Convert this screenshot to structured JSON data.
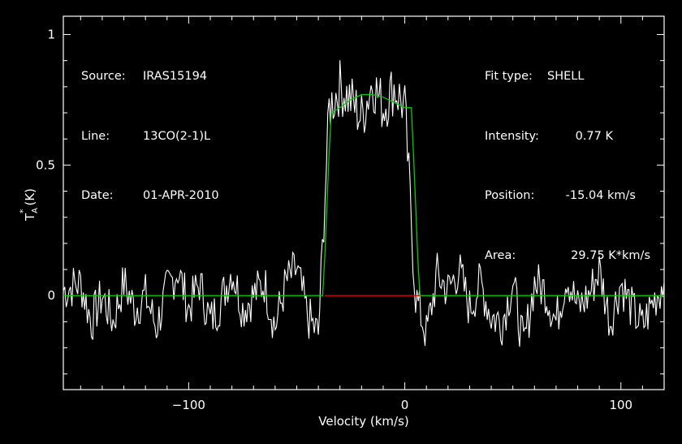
{
  "header": {
    "source_key": "Source:",
    "source_val": "IRAS15194",
    "line_key": "Line:",
    "line_val": "13CO(2-1)L",
    "date_key": "Date:",
    "date_val": "01-APR-2010"
  },
  "fit": {
    "type_key": "Fit type:",
    "type_val": "SHELL",
    "intensity_key": "Intensity:",
    "intensity_val": "0.77 K",
    "position_key": "Position:",
    "position_val": "-15.04 km/s",
    "area_key": "Area:",
    "area_val": "29.75 K*km/s"
  },
  "colors": {
    "background": "#000000",
    "spectrum": "#ffffff",
    "fit": "#00cc00",
    "baseline_window": "#dd0000"
  },
  "chart_data": {
    "type": "line",
    "xlabel": "Velocity (km/s)",
    "ylabel": "T*A (K)",
    "xlim": [
      -158,
      120
    ],
    "ylim": [
      -0.36,
      1.07
    ],
    "xticks": [
      -100,
      0,
      100
    ],
    "xtick_labels": [
      "-100",
      "0",
      "100"
    ],
    "yticks": [
      0,
      0.5,
      1
    ],
    "ytick_labels": [
      "0",
      "0.5",
      "1"
    ],
    "grid": false,
    "series": [
      {
        "kind": "spectrum",
        "x": [
          -158,
          -150,
          -145,
          -140,
          -135,
          -130,
          -125,
          -120,
          -115,
          -110,
          -105,
          -100,
          -95,
          -90,
          -85,
          -80,
          -75,
          -70,
          -65,
          -60,
          -55,
          -50,
          -45,
          -40,
          -35,
          -30,
          -25,
          -20,
          -15,
          -10,
          -5,
          0,
          5,
          10,
          15,
          20,
          25,
          30,
          35,
          40,
          45,
          50,
          55,
          60,
          65,
          70,
          75,
          80,
          85,
          90,
          95,
          100,
          105,
          110,
          115,
          120
        ],
        "y": [
          0.02,
          0.05,
          -0.1,
          0.0,
          -0.1,
          0.05,
          -0.05,
          0.0,
          -0.12,
          0.02,
          0.1,
          -0.05,
          0.05,
          -0.1,
          -0.02,
          0.1,
          -0.05,
          0.0,
          0.05,
          -0.12,
          0.05,
          0.1,
          -0.08,
          -0.15,
          0.72,
          0.8,
          0.75,
          0.68,
          0.82,
          0.72,
          0.8,
          0.72,
          0.0,
          -0.15,
          0.08,
          0.02,
          0.1,
          -0.05,
          0.05,
          -0.08,
          -0.1,
          0.05,
          -0.2,
          0.05,
          0.02,
          -0.1,
          0.08,
          -0.05,
          0.0,
          0.1,
          -0.1,
          0.05,
          -0.05,
          -0.12,
          -0.02,
          0.05
        ]
      },
      {
        "kind": "fit",
        "x": [
          -158,
          -38,
          -37,
          -36,
          -35,
          -34,
          -30,
          -25,
          -20,
          -15,
          -10,
          -5,
          0,
          3,
          4,
          5,
          6,
          7,
          120
        ],
        "y": [
          0,
          0,
          0.15,
          0.35,
          0.55,
          0.7,
          0.72,
          0.75,
          0.77,
          0.77,
          0.76,
          0.74,
          0.72,
          0.72,
          0.55,
          0.35,
          0.15,
          0,
          0
        ]
      },
      {
        "kind": "baseline-window",
        "x": [
          -37,
          7
        ],
        "y": [
          0,
          0
        ]
      }
    ]
  }
}
